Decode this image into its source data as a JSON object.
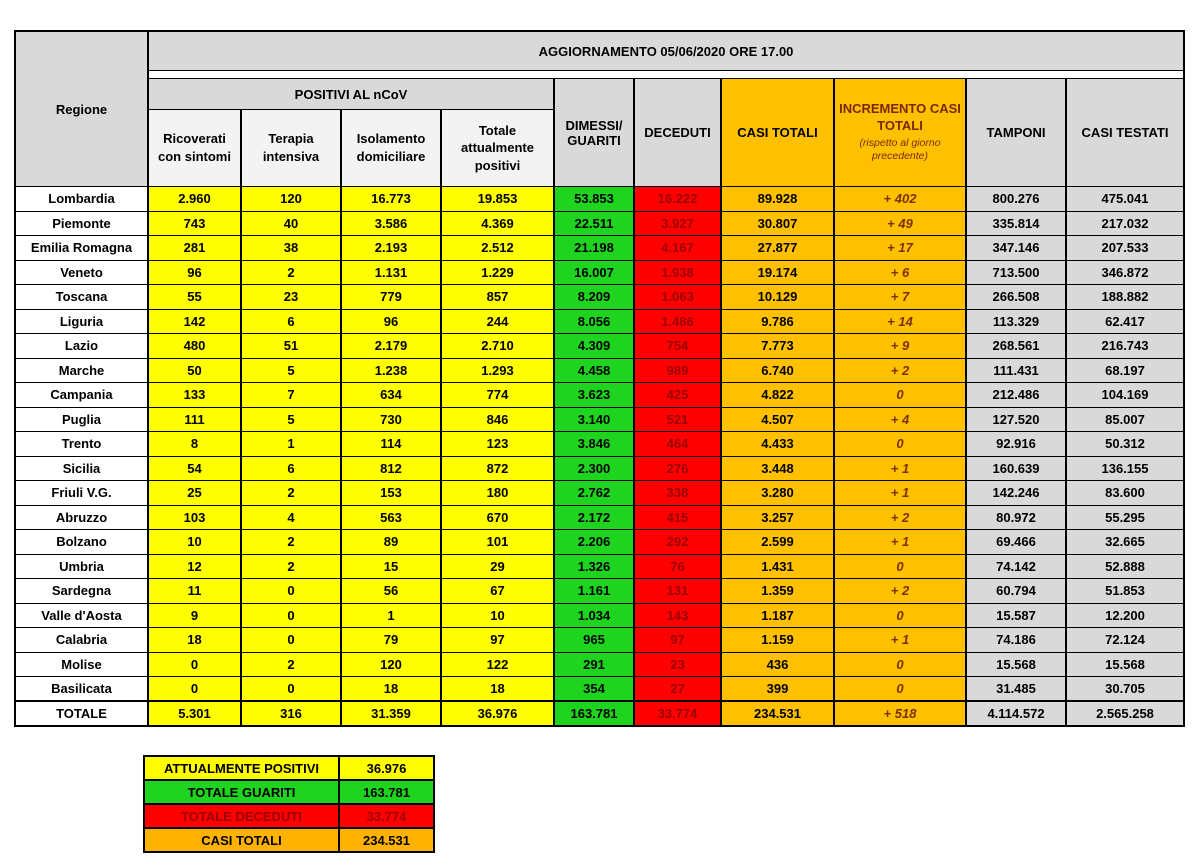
{
  "title": "AGGIORNAMENTO 05/06/2020 ORE 17.00",
  "headers": {
    "regione": "Regione",
    "positivi_group": "POSITIVI AL nCoV",
    "ricoverati": "Ricoverati con sintomi",
    "terapia": "Terapia intensiva",
    "isolamento": "Isolamento domiciliare",
    "totale_positivi": "Totale attualmente positivi",
    "dimessi": "DIMESSI/ GUARITI",
    "deceduti": "DECEDUTI",
    "casi_totali": "CASI TOTALI",
    "incremento_title": "INCREMENTO CASI TOTALI",
    "incremento_note": "(rispetto al giorno precedente)",
    "tamponi": "TAMPONI",
    "casi_testati": "CASI TESTATI"
  },
  "colors": {
    "yellow": "#FFFF00",
    "green": "#1ED41E",
    "red": "#FF0000",
    "orange": "#FFC000",
    "gray": "#D9D9D9",
    "deceduti_text": "#990000",
    "incremento_text": "#7B3000"
  },
  "chart_data": {
    "type": "table",
    "title": "AGGIORNAMENTO 05/06/2020 ORE 17.00",
    "column_group": "POSITIVI AL nCoV",
    "columns": [
      "Regione",
      "Ricoverati con sintomi",
      "Terapia intensiva",
      "Isolamento domiciliare",
      "Totale attualmente positivi",
      "DIMESSI/ GUARITI",
      "DECEDUTI",
      "CASI TOTALI",
      "INCREMENTO CASI TOTALI (rispetto al giorno precedente)",
      "TAMPONI",
      "CASI TESTATI"
    ],
    "rows": [
      {
        "region": "Lombardia",
        "ricoverati": "2.960",
        "terapia": "120",
        "isolamento": "16.773",
        "totale_positivi": "19.853",
        "dimessi": "53.853",
        "deceduti": "16.222",
        "casi_totali": "89.928",
        "incremento": "+ 402",
        "tamponi": "800.276",
        "casi_testati": "475.041"
      },
      {
        "region": "Piemonte",
        "ricoverati": "743",
        "terapia": "40",
        "isolamento": "3.586",
        "totale_positivi": "4.369",
        "dimessi": "22.511",
        "deceduti": "3.927",
        "casi_totali": "30.807",
        "incremento": "+ 49",
        "tamponi": "335.814",
        "casi_testati": "217.032"
      },
      {
        "region": "Emilia Romagna",
        "ricoverati": "281",
        "terapia": "38",
        "isolamento": "2.193",
        "totale_positivi": "2.512",
        "dimessi": "21.198",
        "deceduti": "4.167",
        "casi_totali": "27.877",
        "incremento": "+ 17",
        "tamponi": "347.146",
        "casi_testati": "207.533"
      },
      {
        "region": "Veneto",
        "ricoverati": "96",
        "terapia": "2",
        "isolamento": "1.131",
        "totale_positivi": "1.229",
        "dimessi": "16.007",
        "deceduti": "1.938",
        "casi_totali": "19.174",
        "incremento": "+ 6",
        "tamponi": "713.500",
        "casi_testati": "346.872"
      },
      {
        "region": "Toscana",
        "ricoverati": "55",
        "terapia": "23",
        "isolamento": "779",
        "totale_positivi": "857",
        "dimessi": "8.209",
        "deceduti": "1.063",
        "casi_totali": "10.129",
        "incremento": "+ 7",
        "tamponi": "266.508",
        "casi_testati": "188.882"
      },
      {
        "region": "Liguria",
        "ricoverati": "142",
        "terapia": "6",
        "isolamento": "96",
        "totale_positivi": "244",
        "dimessi": "8.056",
        "deceduti": "1.486",
        "casi_totali": "9.786",
        "incremento": "+ 14",
        "tamponi": "113.329",
        "casi_testati": "62.417"
      },
      {
        "region": "Lazio",
        "ricoverati": "480",
        "terapia": "51",
        "isolamento": "2.179",
        "totale_positivi": "2.710",
        "dimessi": "4.309",
        "deceduti": "754",
        "casi_totali": "7.773",
        "incremento": "+ 9",
        "tamponi": "268.561",
        "casi_testati": "216.743"
      },
      {
        "region": "Marche",
        "ricoverati": "50",
        "terapia": "5",
        "isolamento": "1.238",
        "totale_positivi": "1.293",
        "dimessi": "4.458",
        "deceduti": "989",
        "casi_totali": "6.740",
        "incremento": "+ 2",
        "tamponi": "111.431",
        "casi_testati": "68.197"
      },
      {
        "region": "Campania",
        "ricoverati": "133",
        "terapia": "7",
        "isolamento": "634",
        "totale_positivi": "774",
        "dimessi": "3.623",
        "deceduti": "425",
        "casi_totali": "4.822",
        "incremento": "0",
        "tamponi": "212.486",
        "casi_testati": "104.169"
      },
      {
        "region": "Puglia",
        "ricoverati": "111",
        "terapia": "5",
        "isolamento": "730",
        "totale_positivi": "846",
        "dimessi": "3.140",
        "deceduti": "521",
        "casi_totali": "4.507",
        "incremento": "+ 4",
        "tamponi": "127.520",
        "casi_testati": "85.007"
      },
      {
        "region": "Trento",
        "ricoverati": "8",
        "terapia": "1",
        "isolamento": "114",
        "totale_positivi": "123",
        "dimessi": "3.846",
        "deceduti": "464",
        "casi_totali": "4.433",
        "incremento": "0",
        "tamponi": "92.916",
        "casi_testati": "50.312"
      },
      {
        "region": "Sicilia",
        "ricoverati": "54",
        "terapia": "6",
        "isolamento": "812",
        "totale_positivi": "872",
        "dimessi": "2.300",
        "deceduti": "276",
        "casi_totali": "3.448",
        "incremento": "+ 1",
        "tamponi": "160.639",
        "casi_testati": "136.155"
      },
      {
        "region": "Friuli V.G.",
        "ricoverati": "25",
        "terapia": "2",
        "isolamento": "153",
        "totale_positivi": "180",
        "dimessi": "2.762",
        "deceduti": "338",
        "casi_totali": "3.280",
        "incremento": "+ 1",
        "tamponi": "142.246",
        "casi_testati": "83.600"
      },
      {
        "region": "Abruzzo",
        "ricoverati": "103",
        "terapia": "4",
        "isolamento": "563",
        "totale_positivi": "670",
        "dimessi": "2.172",
        "deceduti": "415",
        "casi_totali": "3.257",
        "incremento": "+ 2",
        "tamponi": "80.972",
        "casi_testati": "55.295"
      },
      {
        "region": "Bolzano",
        "ricoverati": "10",
        "terapia": "2",
        "isolamento": "89",
        "totale_positivi": "101",
        "dimessi": "2.206",
        "deceduti": "292",
        "casi_totali": "2.599",
        "incremento": "+ 1",
        "tamponi": "69.466",
        "casi_testati": "32.665"
      },
      {
        "region": "Umbria",
        "ricoverati": "12",
        "terapia": "2",
        "isolamento": "15",
        "totale_positivi": "29",
        "dimessi": "1.326",
        "deceduti": "76",
        "casi_totali": "1.431",
        "incremento": "0",
        "tamponi": "74.142",
        "casi_testati": "52.888"
      },
      {
        "region": "Sardegna",
        "ricoverati": "11",
        "terapia": "0",
        "isolamento": "56",
        "totale_positivi": "67",
        "dimessi": "1.161",
        "deceduti": "131",
        "casi_totali": "1.359",
        "incremento": "+ 2",
        "tamponi": "60.794",
        "casi_testati": "51.853"
      },
      {
        "region": "Valle d'Aosta",
        "ricoverati": "9",
        "terapia": "0",
        "isolamento": "1",
        "totale_positivi": "10",
        "dimessi": "1.034",
        "deceduti": "143",
        "casi_totali": "1.187",
        "incremento": "0",
        "tamponi": "15.587",
        "casi_testati": "12.200"
      },
      {
        "region": "Calabria",
        "ricoverati": "18",
        "terapia": "0",
        "isolamento": "79",
        "totale_positivi": "97",
        "dimessi": "965",
        "deceduti": "97",
        "casi_totali": "1.159",
        "incremento": "+ 1",
        "tamponi": "74.186",
        "casi_testati": "72.124"
      },
      {
        "region": "Molise",
        "ricoverati": "0",
        "terapia": "2",
        "isolamento": "120",
        "totale_positivi": "122",
        "dimessi": "291",
        "deceduti": "23",
        "casi_totali": "436",
        "incremento": "0",
        "tamponi": "15.568",
        "casi_testati": "15.568"
      },
      {
        "region": "Basilicata",
        "ricoverati": "0",
        "terapia": "0",
        "isolamento": "18",
        "totale_positivi": "18",
        "dimessi": "354",
        "deceduti": "27",
        "casi_totali": "399",
        "incremento": "0",
        "tamponi": "31.485",
        "casi_testati": "30.705"
      }
    ],
    "totale": {
      "region": "TOTALE",
      "ricoverati": "5.301",
      "terapia": "316",
      "isolamento": "31.359",
      "totale_positivi": "36.976",
      "dimessi": "163.781",
      "deceduti": "33.774",
      "casi_totali": "234.531",
      "incremento": "+ 518",
      "tamponi": "4.114.572",
      "casi_testati": "2.565.258"
    }
  },
  "summary": [
    {
      "label": "ATTUALMENTE POSITIVI",
      "value": "36.976"
    },
    {
      "label": "TOTALE GUARITI",
      "value": "163.781"
    },
    {
      "label": "TOTALE DECEDUTI",
      "value": "33.774"
    },
    {
      "label": "CASI TOTALI",
      "value": "234.531"
    }
  ]
}
